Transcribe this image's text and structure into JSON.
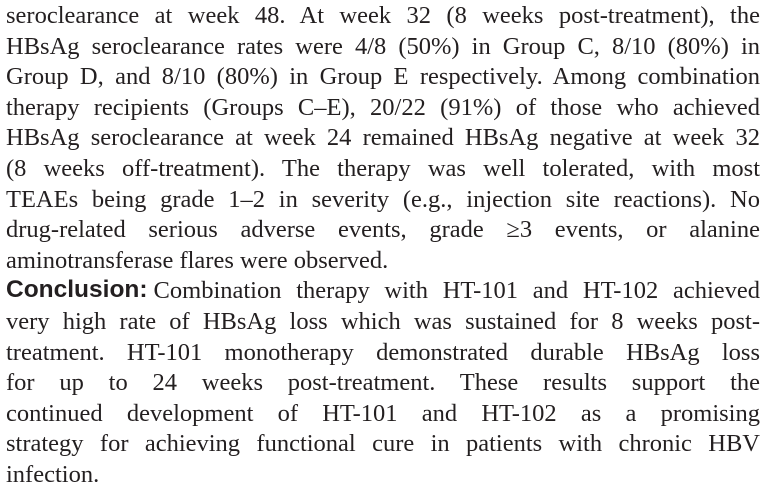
{
  "paragraphs": [
    {
      "lines": [
        "seroclearance at week 48. At week 32 (8 weeks post-treatment), the",
        "HBsAg seroclearance rates were 4/8 (50%) in Group C, 8/10 (80%) in",
        "Group D, and 8/10 (80%) in Group E respectively. Among combination",
        "therapy recipients (Groups C–E), 20/22 (91%) of those who achieved",
        "HBsAg seroclearance at week 24 remained HBsAg negative at week 32",
        "(8 weeks off-treatment). The therapy was well tolerated, with most",
        "TEAEs being grade 1–2 in severity (e.g., injection site reactions). No",
        "drug-related serious adverse events, grade ≥3 events, or alanine",
        "aminotransferase flares were observed."
      ]
    },
    {
      "label": "Conclusion:",
      "lines": [
        "Combination therapy with HT-101 and HT-102 achieved",
        "very high rate of HBsAg loss which was sustained for 8 weeks post-",
        "treatment. HT-101 monotherapy demonstrated durable HBsAg loss",
        "for up to 24 weeks post-treatment. These results support the",
        "continued development of HT-101 and HT-102 as a promising",
        "strategy for achieving functional cure in patients with chronic HBV",
        "infection."
      ]
    }
  ]
}
